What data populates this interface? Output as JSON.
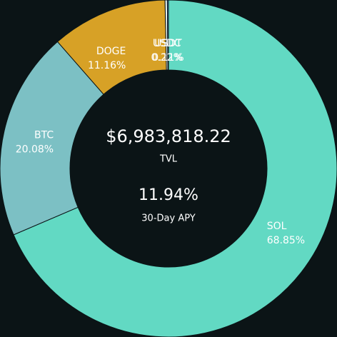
{
  "chart_data": {
    "type": "pie",
    "categories": [
      "SOL",
      "BTC",
      "DOGE",
      "USDC",
      "USDT"
    ],
    "values": [
      68.85,
      20.08,
      11.16,
      0.22,
      0.11
    ],
    "value_labels": [
      "68.85%",
      "20.08%",
      "11.16%",
      "0.22%",
      "0.11%"
    ],
    "colors": [
      "#62d9c3",
      "#7cc0c4",
      "#d7a126",
      "#e8f4f4",
      "#3a8fd6"
    ],
    "center_value": "$6,983,818.22",
    "center_label": "TVL",
    "apy_value": "11.94%",
    "apy_label": "30-Day APY"
  }
}
